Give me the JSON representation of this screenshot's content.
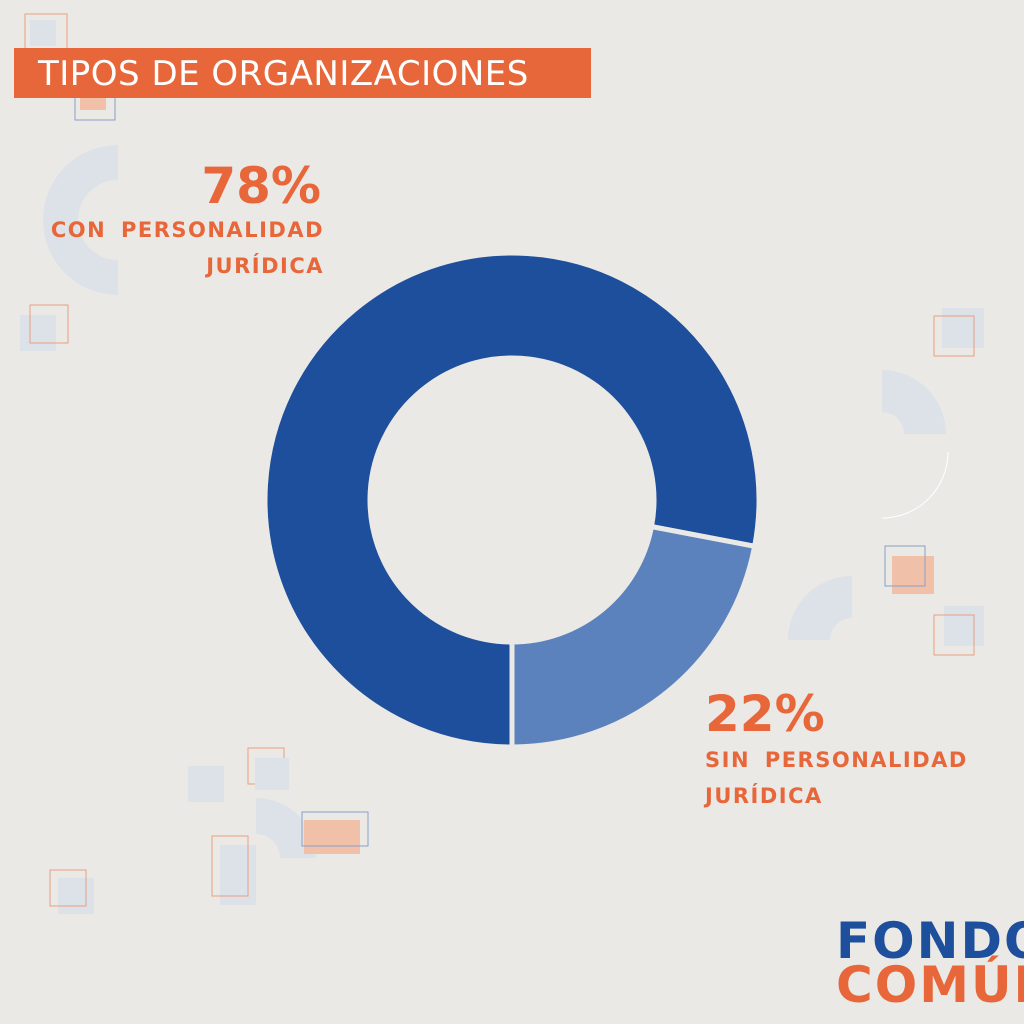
{
  "chart_data": {
    "type": "donut",
    "title": "TIPOS DE ORGANIZACIONES",
    "categories": [
      "CON PERSONALIDAD JURÍDICA",
      "SIN PERSONALIDAD JURÍDICA"
    ],
    "values": [
      78,
      22
    ],
    "value_labels": [
      "78%",
      "22%"
    ],
    "colors": [
      "#1d4f9c",
      "#5b82bd"
    ]
  },
  "logo": {
    "line1": "FONDO",
    "line2": "COMÚN"
  }
}
